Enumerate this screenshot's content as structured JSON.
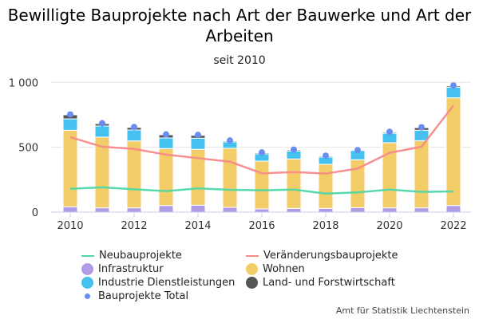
{
  "chart_data": {
    "type": "bar",
    "stacked": true,
    "title": "Bewilligte Bauprojekte nach Art der Bauwerke und Art der Arbeiten",
    "subtitle": "seit 2010",
    "xlabel": "",
    "ylabel": "",
    "ylim": [
      0,
      1000
    ],
    "yticks": [
      0,
      500,
      1000
    ],
    "ytick_labels": [
      "0",
      "500",
      "1 000"
    ],
    "xticks": [
      2010,
      2012,
      2014,
      2016,
      2018,
      2020,
      2022
    ],
    "grid": true,
    "legend_position": "bottom",
    "categories": [
      2010,
      2011,
      2012,
      2013,
      2014,
      2015,
      2016,
      2017,
      2018,
      2019,
      2020,
      2021,
      2022
    ],
    "series": [
      {
        "name": "Infrastruktur",
        "kind": "bar",
        "color": "#b19be6",
        "values": [
          41,
          33,
          33,
          51,
          53,
          37,
          25,
          29,
          29,
          35,
          33,
          33,
          51
        ]
      },
      {
        "name": "Wohnen",
        "kind": "bar",
        "color": "#f2cd68",
        "values": [
          590,
          545,
          516,
          439,
          431,
          455,
          368,
          381,
          340,
          369,
          502,
          518,
          830
        ]
      },
      {
        "name": "Industrie Dienstleistungen",
        "kind": "bar",
        "color": "#45c1f0",
        "values": [
          88,
          86,
          84,
          82,
          86,
          49,
          56,
          61,
          55,
          71,
          73,
          80,
          82
        ]
      },
      {
        "name": "Land- und Forstwirtschaft",
        "kind": "bar",
        "color": "#555555",
        "values": [
          31,
          18,
          20,
          24,
          22,
          8,
          8,
          8,
          8,
          0,
          8,
          20,
          10
        ]
      },
      {
        "name": "Neubauprojekte",
        "kind": "line",
        "color": "#4fd6a9",
        "values": [
          180,
          191,
          176,
          162,
          183,
          172,
          168,
          174,
          143,
          152,
          174,
          156,
          160
        ]
      },
      {
        "name": "Veränderungsbauprojekte",
        "kind": "line",
        "color": "#f78a8a",
        "values": [
          578,
          504,
          487,
          443,
          416,
          389,
          299,
          309,
          297,
          336,
          457,
          504,
          822
        ]
      },
      {
        "name": "Bauprojekte Total",
        "kind": "dot",
        "color": "#6a8ef0",
        "values": [
          758,
          695,
          663,
          605,
          599,
          561,
          467,
          483,
          440,
          488,
          631,
          660,
          982
        ]
      }
    ]
  },
  "legend": [
    {
      "label": "Neubauprojekte",
      "type": "line",
      "color": "#4fd6a9"
    },
    {
      "label": "Veränderungsbauprojekte",
      "type": "line",
      "color": "#f78a8a"
    },
    {
      "label": "Infrastruktur",
      "type": "circle",
      "color": "#b19be6"
    },
    {
      "label": "Wohnen",
      "type": "circle",
      "color": "#f2cd68"
    },
    {
      "label": "Industrie Dienstleistungen",
      "type": "circle",
      "color": "#45c1f0"
    },
    {
      "label": "Land- und Forstwirtschaft",
      "type": "circle",
      "color": "#555555"
    },
    {
      "label": "Bauprojekte Total",
      "type": "dot",
      "color": "#6a8ef0"
    }
  ],
  "credit": "Amt für Statistik Liechtenstein"
}
